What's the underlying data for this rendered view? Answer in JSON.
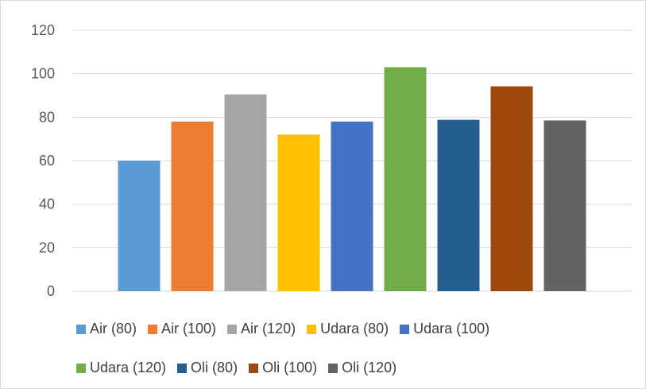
{
  "chart_data": {
    "type": "bar",
    "title": "",
    "xlabel": "",
    "ylabel": "",
    "ylim": [
      0,
      120
    ],
    "yticks": [
      0,
      20,
      40,
      60,
      80,
      100,
      120
    ],
    "grid": true,
    "legend_position": "bottom",
    "series": [
      {
        "name": "Air (80)",
        "value": 60,
        "color": "#5B9BD5"
      },
      {
        "name": "Air (100)",
        "value": 78,
        "color": "#ED7D31"
      },
      {
        "name": "Air (120)",
        "value": 90.5,
        "color": "#A5A5A5"
      },
      {
        "name": "Udara (80)",
        "value": 72,
        "color": "#FFC000"
      },
      {
        "name": "Udara (100)",
        "value": 78,
        "color": "#4472C4"
      },
      {
        "name": "Udara (120)",
        "value": 103,
        "color": "#70AD47"
      },
      {
        "name": "Oli (80)",
        "value": 78.8,
        "color": "#255E91"
      },
      {
        "name": "Oli (100)",
        "value": 94.2,
        "color": "#9E480E"
      },
      {
        "name": "Oli (120)",
        "value": 78.5,
        "color": "#636363"
      }
    ]
  }
}
